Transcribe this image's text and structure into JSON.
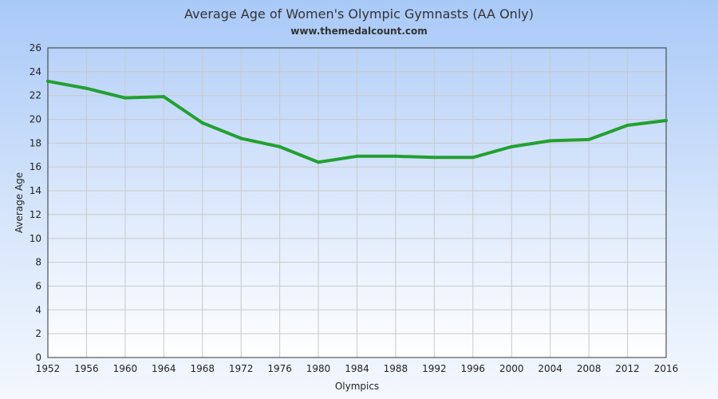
{
  "chart_data": {
    "type": "line",
    "title": "Average Age of Women's Olympic Gymnasts (AA Only)",
    "subtitle": "www.themedalcount.com",
    "xlabel": "Olympics",
    "ylabel": "Average Age",
    "categories": [
      "1952",
      "1956",
      "1960",
      "1964",
      "1968",
      "1972",
      "1976",
      "1980",
      "1984",
      "1988",
      "1992",
      "1996",
      "2000",
      "2004",
      "2008",
      "2012",
      "2016"
    ],
    "series": [
      {
        "values": [
          23.2,
          22.6,
          21.8,
          21.9,
          19.7,
          18.4,
          17.7,
          16.4,
          16.9,
          16.9,
          16.8,
          16.8,
          17.7,
          18.2,
          18.3,
          19.5,
          19.9
        ]
      }
    ],
    "ylim": [
      0,
      26
    ],
    "yticks": [
      0,
      2,
      4,
      6,
      8,
      10,
      12,
      14,
      16,
      18,
      20,
      22,
      24,
      26
    ],
    "grid": true,
    "legend": "none",
    "colors": {
      "line": "#22a030",
      "grid": "#c9c9c9",
      "plot_top": "#b9d2f8",
      "plot_bottom": "#ffffff"
    }
  }
}
